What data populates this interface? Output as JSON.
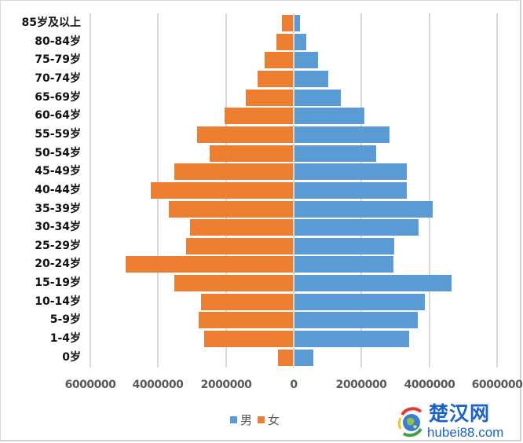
{
  "chart_data": {
    "type": "bar",
    "orientation": "horizontal",
    "subtype": "population-pyramid",
    "title": "",
    "xlabel": "",
    "ylabel": "",
    "categories": [
      "85岁及以上",
      "80-84岁",
      "75-79岁",
      "70-74岁",
      "65-69岁",
      "60-64岁",
      "55-59岁",
      "50-54岁",
      "45-49岁",
      "40-44岁",
      "35-39岁",
      "30-34岁",
      "25-29岁",
      "20-24岁",
      "15-19岁",
      "10-14岁",
      "5-9岁",
      "1-4岁",
      "0岁"
    ],
    "series": [
      {
        "name": "男",
        "color": "#5b9bd5",
        "side": "right",
        "values": [
          170000,
          350000,
          700000,
          1000000,
          1370000,
          2060000,
          2800000,
          2410000,
          3310000,
          3310000,
          4080000,
          3660000,
          2940000,
          2920000,
          4640000,
          3850000,
          3640000,
          3380000,
          560000
        ]
      },
      {
        "name": "女",
        "color": "#ed7d31",
        "side": "left",
        "values": [
          350000,
          510000,
          850000,
          1060000,
          1410000,
          2030000,
          2840000,
          2470000,
          3510000,
          4220000,
          3670000,
          3050000,
          3180000,
          4960000,
          3530000,
          2720000,
          2810000,
          2650000,
          460000
        ]
      }
    ],
    "xlim": [
      -6000000,
      6000000
    ],
    "xticks": [
      -6000000,
      -4000000,
      -2000000,
      0,
      2000000,
      4000000,
      6000000
    ],
    "xtick_labels": [
      "6000000",
      "4000000",
      "2000000",
      "0",
      "2000000",
      "4000000",
      "6000000"
    ],
    "grid": true,
    "legend_position": "bottom"
  },
  "legend": {
    "items": [
      {
        "label": "男",
        "color": "#5b9bd5"
      },
      {
        "label": "女",
        "color": "#ed7d31"
      }
    ]
  },
  "watermark": {
    "title": "楚汉网",
    "url": "hubei88.com"
  }
}
